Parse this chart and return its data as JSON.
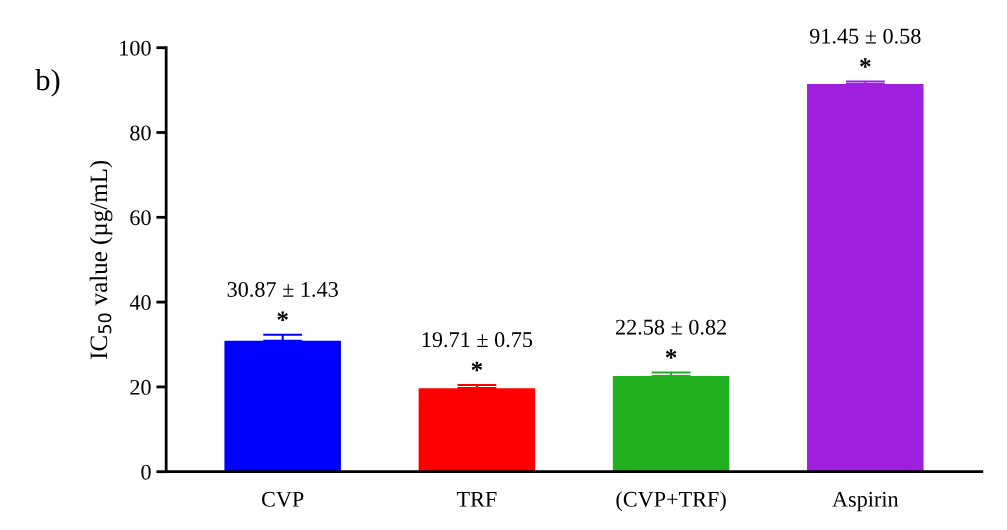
{
  "chart_data": {
    "type": "bar",
    "ylabel": "IC$_{50}$ value (µg/mL)",
    "categories": [
      "CVP",
      "TRF",
      "(CVP+TRF)",
      "Aspirin"
    ],
    "values": [
      30.87,
      19.71,
      22.58,
      91.45
    ],
    "errors": [
      1.43,
      0.75,
      0.82,
      0.58
    ],
    "colors": [
      "#0000ff",
      "#ff0000",
      "#20b020",
      "#a020e0"
    ],
    "value_labels": [
      "30.87 ± 1.43",
      "19.71 ± 0.75",
      "22.58 ± 0.82",
      "91.45 ± 0.58"
    ],
    "ylim": [
      0,
      100
    ],
    "yticks": [
      0,
      20,
      40,
      60,
      80,
      100
    ],
    "grid": false,
    "legend": false,
    "annotations": [
      "b)",
      {
        "text": "*",
        "x": "CVP",
        "y": 32.3
      },
      {
        "text": "*",
        "x": "TRF",
        "y": 20.46
      },
      {
        "text": "*",
        "x": "(CVP+TRF)",
        "y": 23.4
      },
      {
        "text": "*",
        "x": "Aspirin",
        "y": 92.03
      }
    ]
  }
}
